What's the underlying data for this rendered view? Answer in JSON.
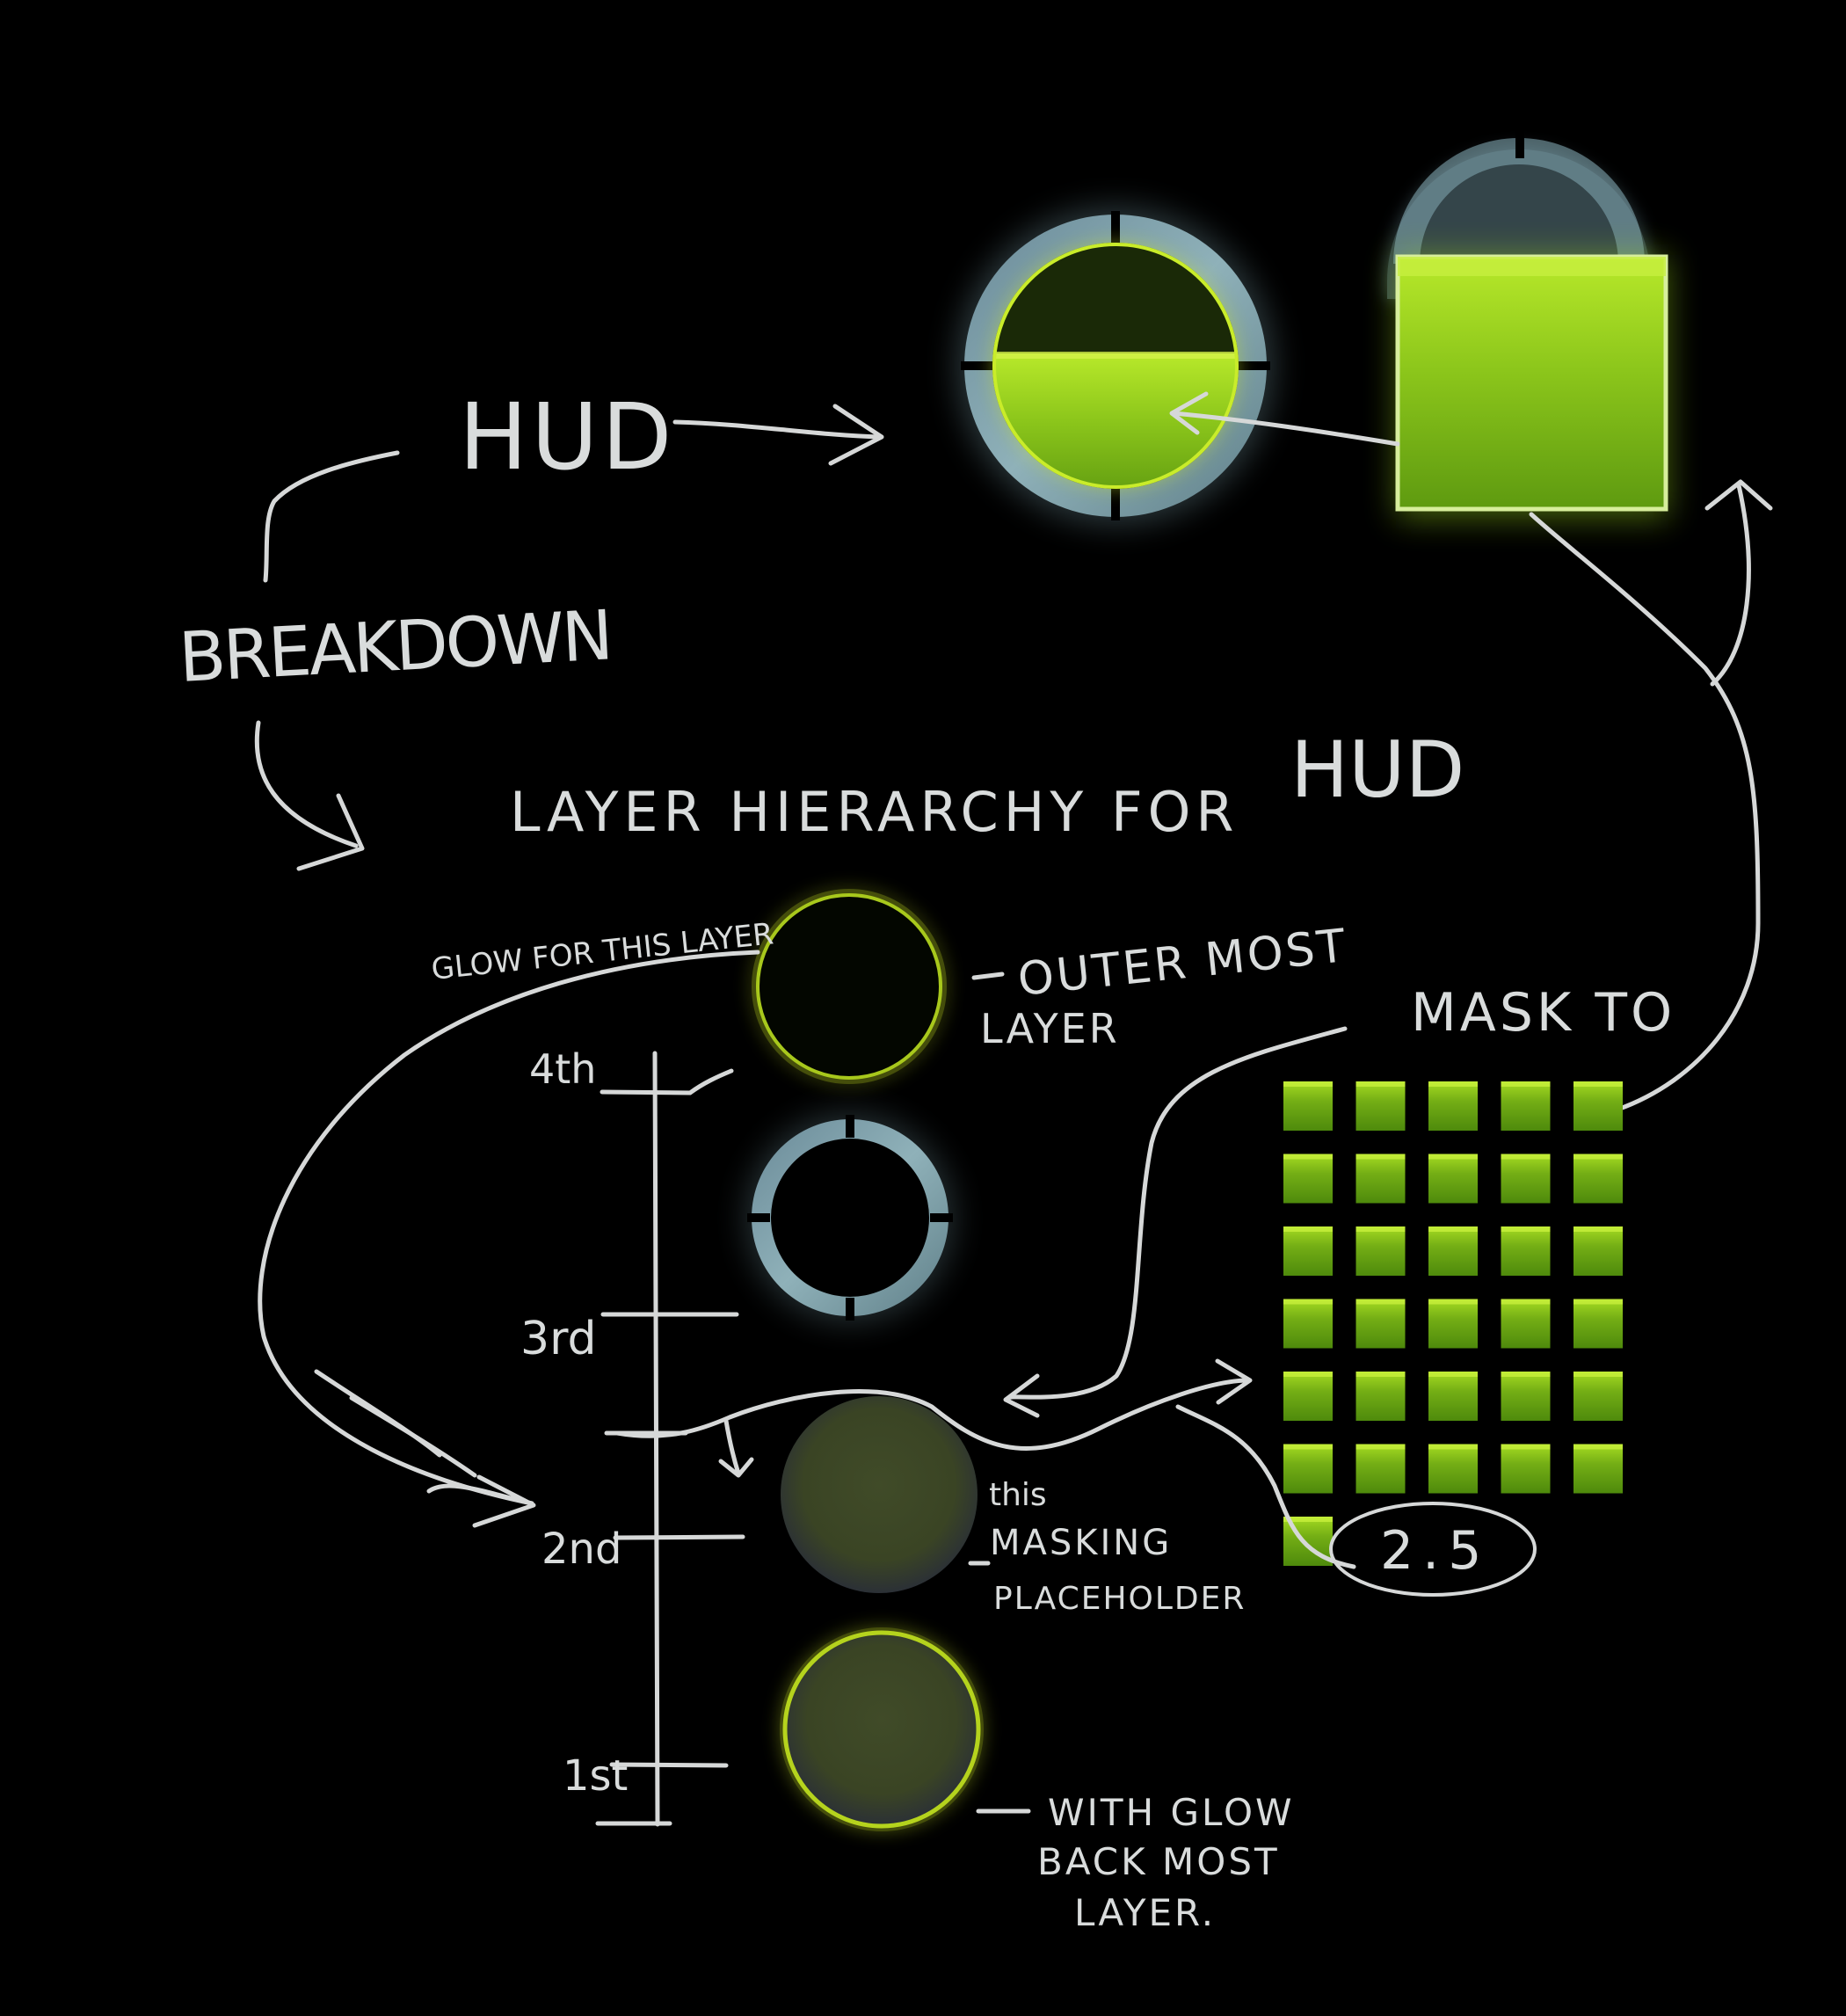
{
  "labels": {
    "hud": "HUD",
    "breakdown": "BREAKDOWN",
    "layer_hierarchy": "LAYER HIERARCHY FOR",
    "layer_hierarchy_hud": "HUD",
    "glow_note": "GLOW FOR THIS LAYER",
    "outer_line1": "OUTER MOST",
    "outer_line2": "LAYER",
    "mask_to": "MASK TO",
    "level_4": "4th",
    "level_3": "3rd",
    "level_2": "2nd",
    "level_1": "1st",
    "mask_line1": "this",
    "mask_line2": "MASKING",
    "mask_line3": "PLACEHOLDER",
    "glow_line1": "WITH GLOW",
    "glow_line2": "BACK MOST",
    "glow_line3": "LAYER.",
    "frame_count": "2.5"
  },
  "tile_grid": {
    "columns": 5,
    "full_rows": 6,
    "last_row_tiles": 1
  },
  "colors": {
    "background": "#000000",
    "chalk": "#d8dada",
    "ring_blue": "#7ea3ad",
    "liquid_green": "#8fd21a",
    "glow_yellow": "#c6e021",
    "placeholder_olive": "#3e4a22"
  }
}
